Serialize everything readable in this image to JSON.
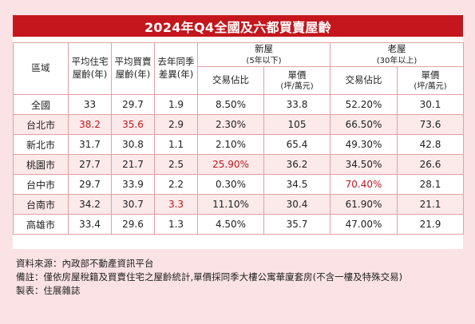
{
  "title": "2024年Q4全國及六都買賣屋齡",
  "headers": {
    "area": "區域",
    "avg_residential_age_line1": "平均住宅",
    "avg_residential_age_line2": "屋齡(年)",
    "avg_trade_age_line1": "平均買賣",
    "avg_trade_age_line2": "屋齡(年)",
    "yoy_diff_line1": "去年同季",
    "yoy_diff_line2": "差異(年)",
    "new_house": "新屋",
    "new_house_sub": "(5年以下)",
    "old_house": "老屋",
    "old_house_sub": "(30年以上)",
    "share": "交易佔比",
    "price": "單價",
    "price_unit": "(坪/萬元)"
  },
  "rows": [
    {
      "area": "全國",
      "avg_res": "33",
      "avg_trade": "29.7",
      "yoy": "1.9",
      "new_share": "8.50%",
      "new_price": "33.8",
      "old_share": "52.20%",
      "old_price": "30.1"
    },
    {
      "area": "台北市",
      "avg_res": "38.2",
      "avg_trade": "35.6",
      "yoy": "2.9",
      "new_share": "2.30%",
      "new_price": "105",
      "old_share": "66.50%",
      "old_price": "73.6"
    },
    {
      "area": "新北市",
      "avg_res": "31.7",
      "avg_trade": "30.8",
      "yoy": "1.1",
      "new_share": "2.10%",
      "new_price": "65.4",
      "old_share": "49.30%",
      "old_price": "42.8"
    },
    {
      "area": "桃園市",
      "avg_res": "27.7",
      "avg_trade": "21.7",
      "yoy": "2.5",
      "new_share": "25.90%",
      "new_price": "36.2",
      "old_share": "34.50%",
      "old_price": "26.6"
    },
    {
      "area": "台中市",
      "avg_res": "29.7",
      "avg_trade": "33.9",
      "yoy": "2.2",
      "new_share": "0.30%",
      "new_price": "34.5",
      "old_share": "70.40%",
      "old_price": "28.1"
    },
    {
      "area": "台南市",
      "avg_res": "34.2",
      "avg_trade": "30.7",
      "yoy": "3.3",
      "new_share": "11.10%",
      "new_price": "30.4",
      "old_share": "61.90%",
      "old_price": "21.1"
    },
    {
      "area": "高雄市",
      "avg_res": "33.4",
      "avg_trade": "29.6",
      "yoy": "1.3",
      "new_share": "4.50%",
      "new_price": "35.7",
      "old_share": "47.00%",
      "old_price": "21.9"
    }
  ],
  "highlight_color": "#c4161c",
  "footer": {
    "source": "資料來源：內政部不動產資訊平台",
    "note": "備註：僅依房屋稅籍及買賣住宅之屋齡統計,單價採同季大樓公寓華廈套房(不含一樓及特殊交易)",
    "made_by": "製表：住展雜誌"
  }
}
